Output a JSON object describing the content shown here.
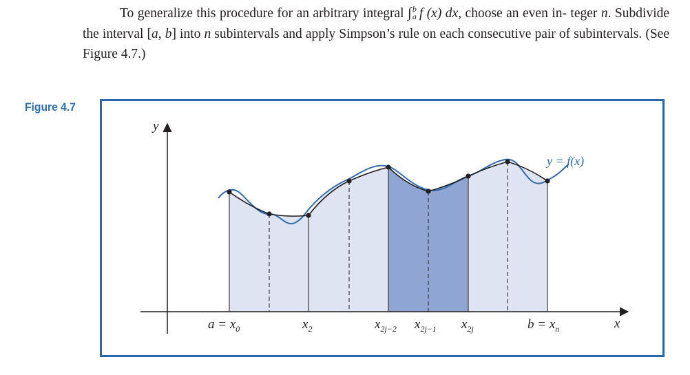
{
  "paragraph": {
    "text_before_integral": "To generalize this procedure for an arbitrary integral ",
    "integral_sign": "∫",
    "upper_limit": "b",
    "lower_limit": "a",
    "integrand": "f (x) dx",
    "text_after_integral": ", choose an even in- teger ",
    "var_n": "n",
    "text_mid_1": ". Subdivide the interval [",
    "var_a": "a",
    "comma_space": ", ",
    "var_b": "b",
    "text_mid_2": "] into ",
    "var_n2": "n",
    "text_end": " subintervals and apply Simpson’s rule on each consecutive pair of subintervals. (See Figure 4.7.)"
  },
  "figure": {
    "label": "Figure 4.7",
    "axis_y_label": "y",
    "axis_x_label": "x",
    "curve_label": "y = f(x)",
    "ticks": [
      {
        "main": "a = x",
        "sub": "0"
      },
      {
        "main": "x",
        "sub": "2"
      },
      {
        "main": "x",
        "sub": "2j−2"
      },
      {
        "main": "x",
        "sub": "2j−1"
      },
      {
        "main": "x",
        "sub": "2j"
      },
      {
        "main": "b = x",
        "sub": "n"
      }
    ],
    "colors": {
      "frame": "#2a66ab",
      "curve": "#2f6cb1",
      "light_fill": "#dfe4f2",
      "dark_fill": "#8fa5d3",
      "label_blue": "#2a6db0"
    }
  }
}
